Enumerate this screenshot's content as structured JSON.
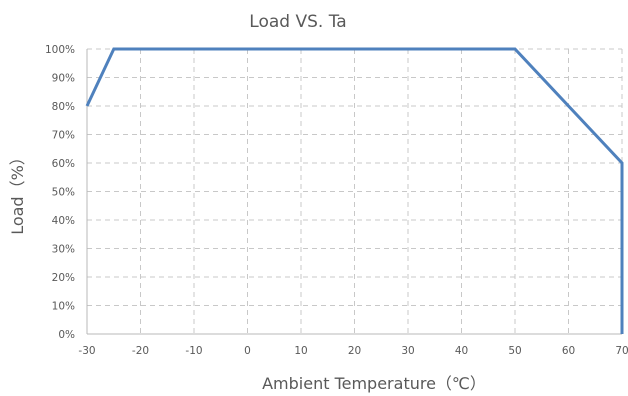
{
  "chart_data": {
    "type": "line",
    "title": "Load VS. Ta",
    "xlabel": "Ambient Temperature（℃）",
    "ylabel": "Load（%）",
    "xlim": [
      -30,
      70
    ],
    "ylim": [
      0,
      100
    ],
    "x_ticks": [
      "-30",
      "-20",
      "-10",
      "0",
      "10",
      "20",
      "30",
      "40",
      "50",
      "60",
      "70"
    ],
    "y_ticks": [
      "0%",
      "10%",
      "20%",
      "30%",
      "40%",
      "50%",
      "60%",
      "70%",
      "80%",
      "90%",
      "100%"
    ],
    "grid": true,
    "series": [
      {
        "color": "#4f81bd",
        "x": [
          -30,
          -25,
          50,
          70,
          70
        ],
        "y": [
          80,
          100,
          100,
          60,
          0
        ]
      }
    ]
  }
}
